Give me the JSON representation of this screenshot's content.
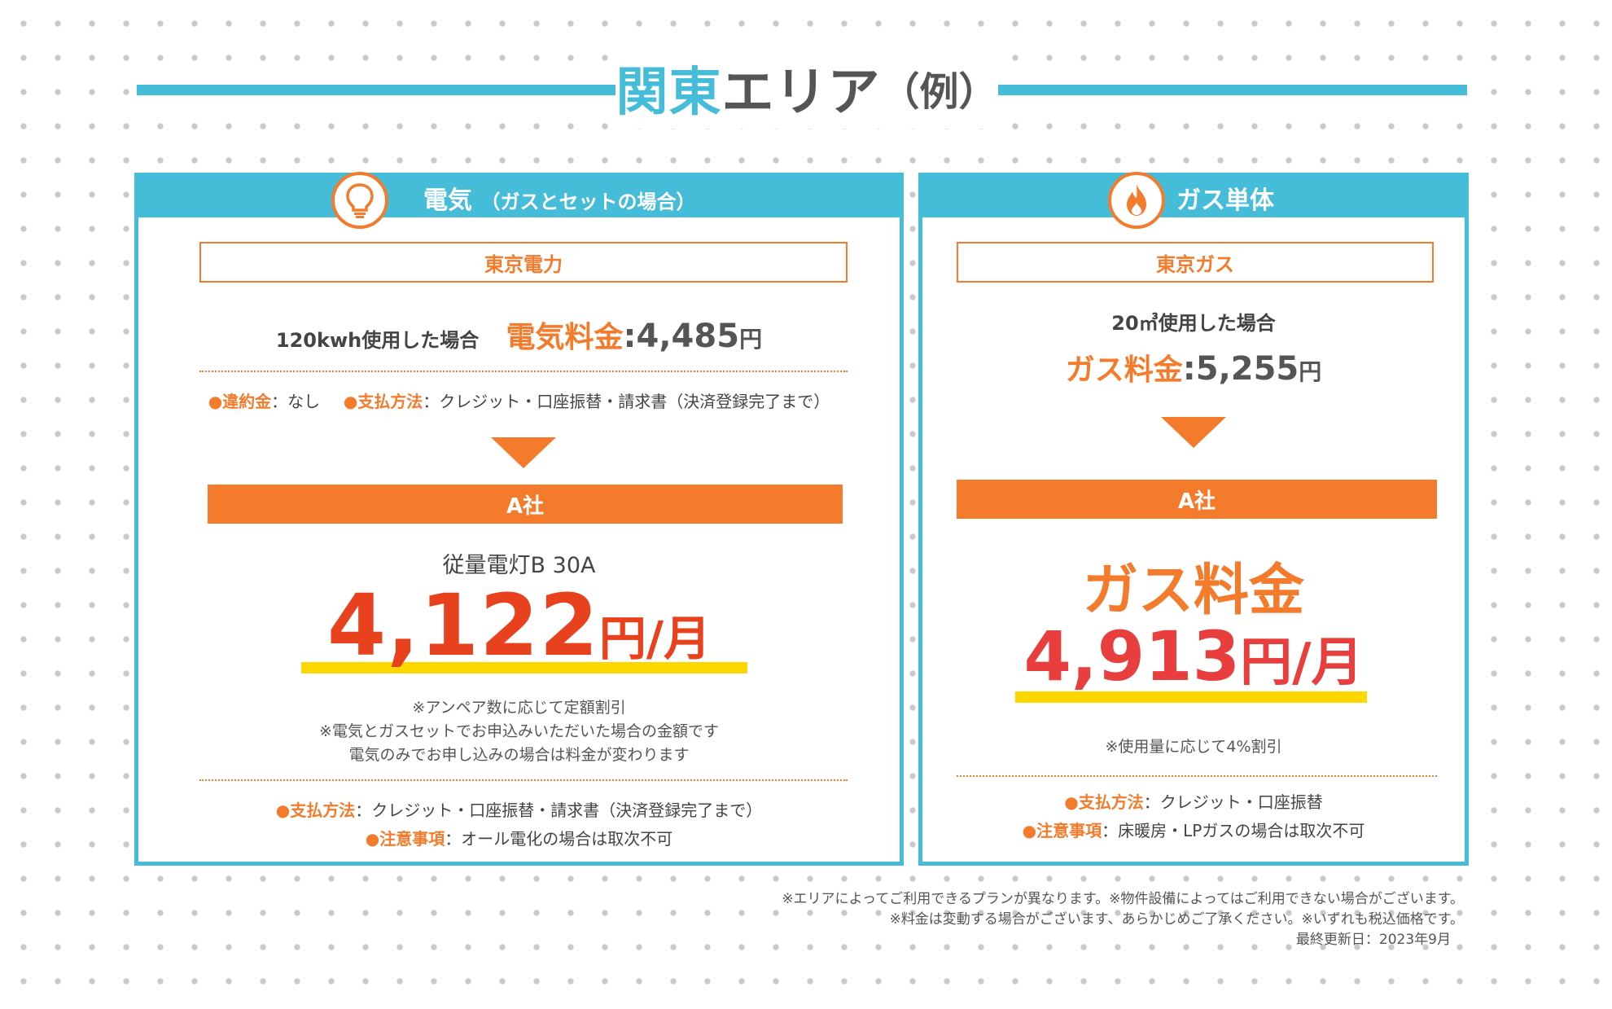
{
  "title": {
    "part1": "関東",
    "part2": "エリア",
    "part3": "（例）"
  },
  "electric": {
    "header": "電気",
    "header_sub": "（ガスとセットの場合）",
    "icon": "lightbulb-icon",
    "current_company": "東京電力",
    "usage": "120kwh使用した場合",
    "fee_label": "電気料金",
    "fee_value": ":4,485",
    "fee_unit": "円",
    "cancel_bullet": "●",
    "cancel_label": "違約金",
    "cancel_value": "：なし",
    "payment_bullet": "●",
    "payment_label": "支払方法",
    "payment_value": "：クレジット・口座振替・請求書（決済登録完了まで）",
    "new_company": "A社",
    "plan_name": "従量電灯B 30A",
    "price_value": "4,122",
    "price_unit": "円/月",
    "notes": [
      "※アンペア数に応じて定額割引",
      "※電気とガスセットでお申込みいただいた場合の金額です",
      "電気のみでお申し込みの場合は料金が変わります"
    ],
    "footer_payment_bullet": "●",
    "footer_payment_label": "支払方法",
    "footer_payment_value": "：クレジット・口座振替・請求書（決済登録完了まで）",
    "caution_bullet": "●",
    "caution_label": "注意事項",
    "caution_value": "：オール電化の場合は取次不可"
  },
  "gas": {
    "header": "ガス単体",
    "icon": "flame-icon",
    "current_company": "東京ガス",
    "usage": "20㎥使用した場合",
    "fee_label": "ガス料金",
    "fee_value": ":5,255",
    "fee_unit": "円",
    "new_company": "A社",
    "price_label": "ガス料金",
    "price_value": "4,913",
    "price_unit": "円/月",
    "note": "※使用量に応じて4%割引",
    "payment_bullet": "●",
    "payment_label": "支払方法",
    "payment_value": "：クレジット・口座振替",
    "caution_bullet": "●",
    "caution_label": "注意事項",
    "caution_value": "：床暖房・LPガスの場合は取次不可"
  },
  "footer": {
    "line1": "※エリアによってご利用できるプランが異なります。※物件設備によってはご利用できない場合がございます。",
    "line2": "※料金は変動する場合がございます、あらかじめご了承ください。※いずれも税込価格です。",
    "line3": "最終更新日：2023年9月"
  },
  "colors": {
    "accent_blue": "#45bcd8",
    "accent_orange": "#f47b2b",
    "price_red": "#e8411e",
    "highlight_yellow": "#fcd800"
  }
}
